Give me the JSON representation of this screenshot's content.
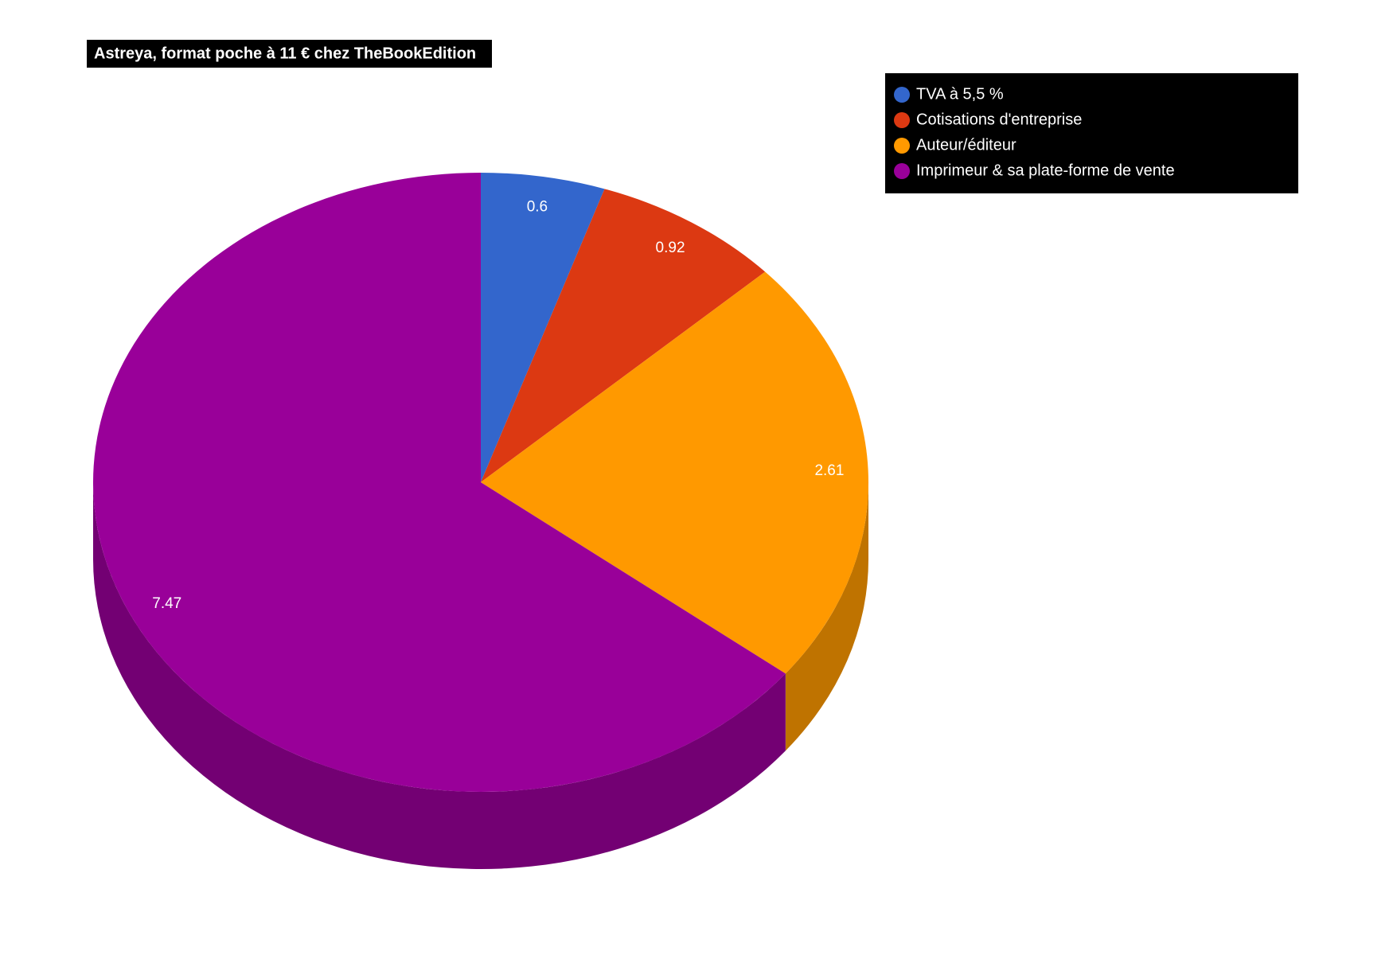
{
  "chart_data": {
    "type": "pie",
    "title": "Astreya, format poche à 11 € chez TheBookEdition",
    "categories": [
      "TVA à 5,5 %",
      "Cotisations d'entreprise",
      "Auteur/éditeur",
      "Imprimeur & sa plate-forme de vente"
    ],
    "values": [
      0.6,
      0.92,
      2.61,
      7.47
    ],
    "colors": [
      "#3366cc",
      "#dc3912",
      "#ff9900",
      "#990099"
    ],
    "legend": "top-right",
    "style": "3d"
  }
}
